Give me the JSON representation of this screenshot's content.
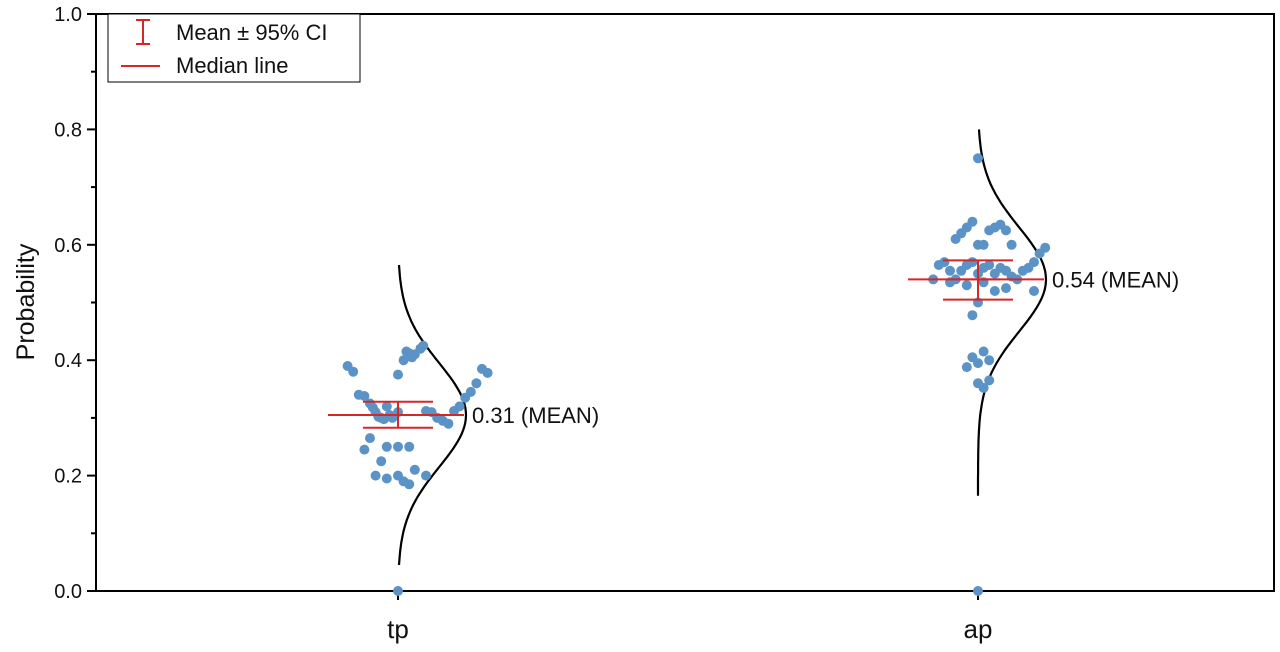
{
  "chart_data": {
    "type": "scatter",
    "ylabel": "Probability",
    "xlabel": "",
    "ylim": [
      0.0,
      1.0
    ],
    "yticks": [
      0.0,
      0.2,
      0.4,
      0.6,
      0.8,
      1.0
    ],
    "ytick_labels": [
      "0.0",
      "0.2",
      "0.4",
      "0.6",
      "0.8",
      "1.0"
    ],
    "categories": [
      "tp",
      "ap"
    ],
    "grid": false,
    "legend_position": "top-left",
    "legend": [
      {
        "label": "Mean ± 95% CI",
        "symbol": "errorbar"
      },
      {
        "label": "Median line",
        "symbol": "line"
      }
    ],
    "colors": {
      "points": "#5b93c7",
      "stats": "#d62728",
      "curve": "#000000"
    },
    "groups": [
      {
        "category": "tp",
        "mean": 0.305,
        "ci": [
          0.283,
          0.328
        ],
        "median": 0.305,
        "mean_label": "0.31 (MEAN)",
        "points": [
          [
            -0.09,
            0.39
          ],
          [
            -0.08,
            0.38
          ],
          [
            -0.07,
            0.34
          ],
          [
            -0.06,
            0.338
          ],
          [
            -0.05,
            0.325
          ],
          [
            -0.045,
            0.318
          ],
          [
            -0.04,
            0.31
          ],
          [
            -0.035,
            0.302
          ],
          [
            -0.03,
            0.3
          ],
          [
            -0.025,
            0.298
          ],
          [
            -0.02,
            0.32
          ],
          [
            -0.015,
            0.305
          ],
          [
            -0.01,
            0.3
          ],
          [
            0.0,
            0.31
          ],
          [
            0.01,
            0.4
          ],
          [
            0.015,
            0.415
          ],
          [
            0.02,
            0.412
          ],
          [
            0.025,
            0.405
          ],
          [
            0.03,
            0.41
          ],
          [
            0.04,
            0.42
          ],
          [
            0.045,
            0.425
          ],
          [
            0.0,
            0.375
          ],
          [
            0.05,
            0.312
          ],
          [
            0.06,
            0.31
          ],
          [
            0.07,
            0.3
          ],
          [
            0.08,
            0.295
          ],
          [
            0.09,
            0.29
          ],
          [
            0.1,
            0.312
          ],
          [
            0.11,
            0.32
          ],
          [
            0.12,
            0.335
          ],
          [
            0.13,
            0.345
          ],
          [
            0.14,
            0.36
          ],
          [
            0.15,
            0.385
          ],
          [
            0.16,
            0.378
          ],
          [
            -0.06,
            0.245
          ],
          [
            -0.05,
            0.265
          ],
          [
            -0.03,
            0.225
          ],
          [
            -0.02,
            0.25
          ],
          [
            0.0,
            0.25
          ],
          [
            0.02,
            0.25
          ],
          [
            -0.04,
            0.2
          ],
          [
            -0.02,
            0.195
          ],
          [
            0.0,
            0.2
          ],
          [
            0.01,
            0.19
          ],
          [
            0.02,
            0.185
          ],
          [
            0.03,
            0.21
          ],
          [
            0.05,
            0.2
          ],
          [
            0.0,
            0.0
          ]
        ],
        "density": {
          "mu": 0.305,
          "sigma": 0.09,
          "range": [
            0.045,
            0.565
          ]
        }
      },
      {
        "category": "ap",
        "mean": 0.54,
        "ci": [
          0.505,
          0.573
        ],
        "median": 0.54,
        "mean_label": "0.54 (MEAN)",
        "points": [
          [
            -0.08,
            0.54
          ],
          [
            -0.07,
            0.565
          ],
          [
            -0.06,
            0.57
          ],
          [
            -0.05,
            0.555
          ],
          [
            -0.04,
            0.54
          ],
          [
            -0.03,
            0.555
          ],
          [
            -0.02,
            0.565
          ],
          [
            -0.01,
            0.57
          ],
          [
            0.0,
            0.55
          ],
          [
            0.01,
            0.56
          ],
          [
            0.02,
            0.565
          ],
          [
            0.03,
            0.55
          ],
          [
            0.04,
            0.56
          ],
          [
            0.05,
            0.555
          ],
          [
            0.06,
            0.545
          ],
          [
            0.07,
            0.54
          ],
          [
            0.08,
            0.555
          ],
          [
            0.09,
            0.56
          ],
          [
            0.1,
            0.57
          ],
          [
            0.11,
            0.585
          ],
          [
            0.12,
            0.595
          ],
          [
            -0.04,
            0.61
          ],
          [
            -0.03,
            0.62
          ],
          [
            -0.02,
            0.63
          ],
          [
            -0.01,
            0.64
          ],
          [
            0.0,
            0.6
          ],
          [
            0.01,
            0.6
          ],
          [
            0.02,
            0.625
          ],
          [
            0.03,
            0.63
          ],
          [
            0.04,
            0.635
          ],
          [
            0.05,
            0.625
          ],
          [
            0.06,
            0.6
          ],
          [
            -0.05,
            0.535
          ],
          [
            -0.02,
            0.53
          ],
          [
            0.0,
            0.5
          ],
          [
            0.01,
            0.535
          ],
          [
            0.03,
            0.52
          ],
          [
            0.05,
            0.525
          ],
          [
            -0.01,
            0.478
          ],
          [
            0.1,
            0.52
          ],
          [
            -0.01,
            0.405
          ],
          [
            0.0,
            0.395
          ],
          [
            0.01,
            0.415
          ],
          [
            0.02,
            0.4
          ],
          [
            -0.02,
            0.388
          ],
          [
            0.0,
            0.36
          ],
          [
            0.01,
            0.352
          ],
          [
            0.02,
            0.365
          ],
          [
            0.0,
            0.75
          ],
          [
            0.0,
            0.0
          ]
        ],
        "density": {
          "mu": 0.54,
          "sigma": 0.09,
          "range": [
            0.165,
            0.8
          ]
        }
      }
    ]
  }
}
